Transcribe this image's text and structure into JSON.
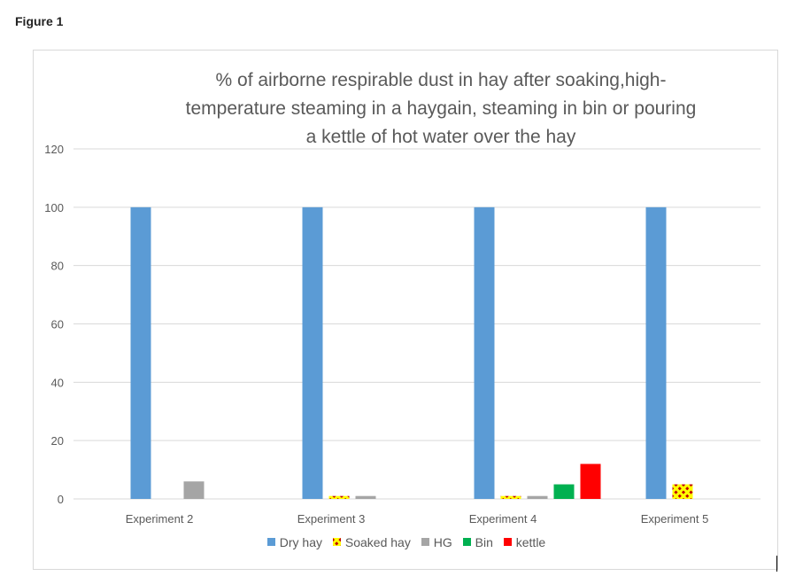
{
  "figure_label": "Figure 1",
  "colors": {
    "dry_hay": "#5b9bd5",
    "soaked_hay": "#c00000",
    "soaked_hay_pattern": "#ffff00",
    "hg": "#a5a5a5",
    "bin": "#00b050",
    "kettle": "#ff0000",
    "gridline": "#d9d9d9",
    "text": "#595959"
  },
  "chart_data": {
    "type": "bar",
    "title": "% of airborne respirable dust in hay after soaking,high-temperature steaming in a haygain, steaming in bin or pouring a kettle of hot water over the hay",
    "title_lines": [
      "% of airborne respirable dust in hay after soaking,high-",
      "temperature steaming in a haygain, steaming in bin or pouring",
      "a kettle of hot water over the hay"
    ],
    "categories": [
      "Experiment 2",
      "Experiment 3",
      "Experiment  4",
      "Experiment 5"
    ],
    "series": [
      {
        "name": "Dry hay",
        "key": "dry_hay",
        "values": [
          100,
          100,
          100,
          100
        ]
      },
      {
        "name": "Soaked hay",
        "key": "soaked_hay",
        "values": [
          null,
          1,
          1,
          5
        ]
      },
      {
        "name": "HG",
        "key": "hg",
        "values": [
          6,
          1,
          1,
          null
        ]
      },
      {
        "name": "Bin",
        "key": "bin",
        "values": [
          null,
          null,
          5,
          null
        ]
      },
      {
        "name": "kettle",
        "key": "kettle",
        "values": [
          null,
          null,
          12,
          null
        ]
      }
    ],
    "ylim": [
      0,
      120
    ],
    "yticks": [
      0,
      20,
      40,
      60,
      80,
      100,
      120
    ],
    "xlabel": "",
    "ylabel": "",
    "grid": true,
    "legend_position": "bottom"
  }
}
